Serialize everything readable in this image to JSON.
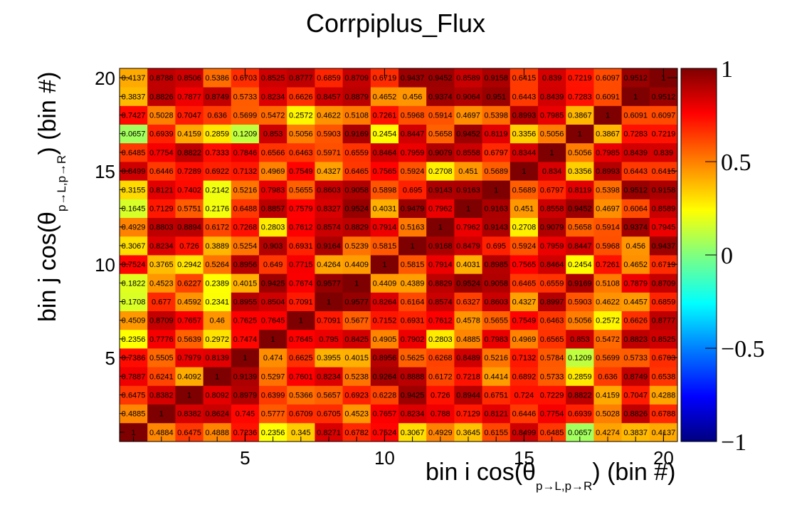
{
  "chart_data": {
    "type": "heatmap",
    "title": "Corrpiplus_Flux",
    "xlabel_main": "bin i cos(θ",
    "xlabel_sub": "p→L,p→R",
    "xlabel_tail": ") (bin #)",
    "ylabel_main": "bin j cos(θ",
    "ylabel_sub": "p→L,p→R",
    "ylabel_tail": ") (bin #)",
    "x_range": [
      0.5,
      20.5
    ],
    "y_range": [
      0.5,
      20.5
    ],
    "x_ticks": [
      5,
      10,
      15,
      20
    ],
    "y_ticks": [
      5,
      10,
      15,
      20
    ],
    "x_tick_labels": [
      "5",
      "10",
      "15",
      "20"
    ],
    "y_tick_labels": [
      "5",
      "10",
      "15",
      "20"
    ],
    "z_range": [
      -1,
      1
    ],
    "colorbar_ticks": [
      -1,
      -0.5,
      0,
      0.5,
      1
    ],
    "colorbar_labels": [
      "−1",
      "−0.5",
      "0",
      "0.5",
      "1"
    ],
    "grid": false,
    "rows": [
      [
        1,
        0.4884,
        0.6475,
        0.4888,
        0.7236,
        0.2356,
        0.345,
        0.8271,
        0.6782,
        0.7524,
        0.3067,
        0.4929,
        0.3645,
        0.6155,
        0.8499,
        0.6485,
        0.0657,
        0.4274,
        0.3837,
        0.4137
      ],
      [
        0.4885,
        1,
        0.8382,
        0.8624,
        0.745,
        0.5777,
        0.6709,
        0.6705,
        0.4523,
        0.7657,
        0.8234,
        0.788,
        0.7129,
        0.8121,
        0.6446,
        0.7754,
        0.6939,
        0.5028,
        0.8826,
        0.6788
      ],
      [
        0.6475,
        0.8382,
        1,
        0.8092,
        0.8979,
        0.6399,
        0.5366,
        0.5657,
        0.6923,
        0.6228,
        0.9425,
        0.726,
        0.8944,
        0.6751,
        0.724,
        0.7229,
        0.8822,
        0.4159,
        0.7047,
        0.4288
      ],
      [
        0.7887,
        0.6241,
        0.4092,
        1,
        0.9139,
        0.5297,
        0.7601,
        0.8234,
        0.5238,
        0.9264,
        0.8888,
        0.6172,
        0.7218,
        0.4414,
        0.6892,
        0.5733,
        0.2859,
        0.636,
        0.8749,
        0.6538
      ],
      [
        0.7386,
        0.5505,
        0.7979,
        0.8139,
        1,
        0.474,
        0.6625,
        0.3955,
        0.4015,
        0.8956,
        0.5625,
        0.6268,
        0.8489,
        0.5216,
        0.7132,
        0.5784,
        0.1209,
        0.5699,
        0.5733,
        0.6703
      ],
      [
        0.2356,
        0.7776,
        0.5639,
        0.2972,
        0.7474,
        1,
        0.7645,
        0.795,
        0.8425,
        0.4905,
        0.7902,
        0.2803,
        0.4885,
        0.7983,
        0.4969,
        0.6565,
        0.853,
        0.5472,
        0.8823,
        0.8525
      ],
      [
        0.4509,
        0.8709,
        0.7657,
        0.46,
        0.7625,
        0.7645,
        1,
        0.7091,
        0.5677,
        0.7152,
        0.6931,
        0.7612,
        0.4578,
        0.5655,
        0.7549,
        0.6463,
        0.5056,
        0.2572,
        0.6626,
        0.8777
      ],
      [
        0.1708,
        0.677,
        0.4592,
        0.2341,
        0.8955,
        0.8504,
        0.7091,
        1,
        0.9577,
        0.8264,
        0.6164,
        0.8574,
        0.6327,
        0.8603,
        0.4327,
        0.8997,
        0.5903,
        0.4622,
        0.4457,
        0.6859
      ],
      [
        0.1822,
        0.4523,
        0.6227,
        0.2389,
        0.4015,
        0.9425,
        0.7674,
        0.9577,
        1,
        0.4409,
        0.4389,
        0.8829,
        0.9524,
        0.9058,
        0.6465,
        0.6559,
        0.9169,
        0.5108,
        0.7879,
        0.8709
      ],
      [
        0.7524,
        0.3765,
        0.2942,
        0.5264,
        0.8956,
        0.649,
        0.7715,
        0.4264,
        0.4409,
        1,
        0.5815,
        0.7914,
        0.4031,
        0.8985,
        0.7565,
        0.8464,
        0.2454,
        0.7261,
        0.4652,
        0.6719
      ],
      [
        0.3067,
        0.8234,
        0.726,
        0.3889,
        0.5254,
        0.903,
        0.6931,
        0.9164,
        0.5239,
        0.5815,
        1,
        0.9168,
        0.8479,
        0.695,
        0.5924,
        0.7959,
        0.8447,
        0.5968,
        0.456,
        0.9437
      ],
      [
        0.4929,
        0.8803,
        0.8894,
        0.6172,
        0.7268,
        0.2803,
        0.7612,
        0.8574,
        0.8829,
        0.7914,
        0.5163,
        1,
        0.7962,
        0.9143,
        0.2708,
        0.9079,
        0.5658,
        0.5914,
        0.9374,
        0.7945
      ],
      [
        0.1645,
        0.7129,
        0.5751,
        0.2176,
        0.6488,
        0.8857,
        0.7579,
        0.8327,
        0.9524,
        0.4031,
        0.9479,
        0.7962,
        1,
        0.9163,
        0.451,
        0.8558,
        0.9452,
        0.4697,
        0.6064,
        0.8589
      ],
      [
        0.3155,
        0.8121,
        0.7402,
        0.2142,
        0.5216,
        0.7983,
        0.5655,
        0.8603,
        0.9058,
        0.5898,
        0.695,
        0.9143,
        0.9163,
        1,
        0.5689,
        0.6797,
        0.8119,
        0.5398,
        0.9512,
        0.9158
      ],
      [
        0.8499,
        0.6446,
        0.7289,
        0.6922,
        0.7132,
        0.4969,
        0.7549,
        0.4327,
        0.6465,
        0.7565,
        0.5924,
        0.2708,
        0.451,
        0.5689,
        1,
        0.834,
        0.3356,
        0.8993,
        0.6443,
        0.6415
      ],
      [
        0.6485,
        0.7754,
        0.8822,
        0.7333,
        0.7846,
        0.6566,
        0.6463,
        0.5971,
        0.6559,
        0.8464,
        0.7959,
        0.9079,
        0.8558,
        0.6797,
        0.8344,
        1,
        0.5056,
        0.7985,
        0.8439,
        0.839
      ],
      [
        0.0657,
        0.6939,
        0.4159,
        0.2859,
        0.1209,
        0.853,
        0.5056,
        0.5903,
        0.9169,
        0.2454,
        0.8447,
        0.5658,
        0.9452,
        0.8119,
        0.3356,
        0.5056,
        1,
        0.3867,
        0.7283,
        0.7219
      ],
      [
        0.7427,
        0.5028,
        0.7047,
        0.636,
        0.5699,
        0.5472,
        0.2572,
        0.4622,
        0.5108,
        0.7261,
        0.5968,
        0.5914,
        0.4697,
        0.5398,
        0.8993,
        0.7985,
        0.3867,
        1,
        0.6091,
        0.6097
      ],
      [
        0.3837,
        0.8826,
        0.7877,
        0.8749,
        0.5733,
        0.8234,
        0.6626,
        0.8457,
        0.8879,
        0.4652,
        0.456,
        0.9374,
        0.9064,
        0.951,
        0.6443,
        0.8439,
        0.7283,
        0.6091,
        1,
        0.9512
      ],
      [
        0.4137,
        0.8788,
        0.8506,
        0.5386,
        0.6703,
        0.8525,
        0.8777,
        0.6859,
        0.8709,
        0.6719,
        0.9437,
        0.9452,
        0.8589,
        0.9158,
        0.6415,
        0.839,
        0.7219,
        0.6097,
        0.9512,
        1
      ]
    ]
  }
}
